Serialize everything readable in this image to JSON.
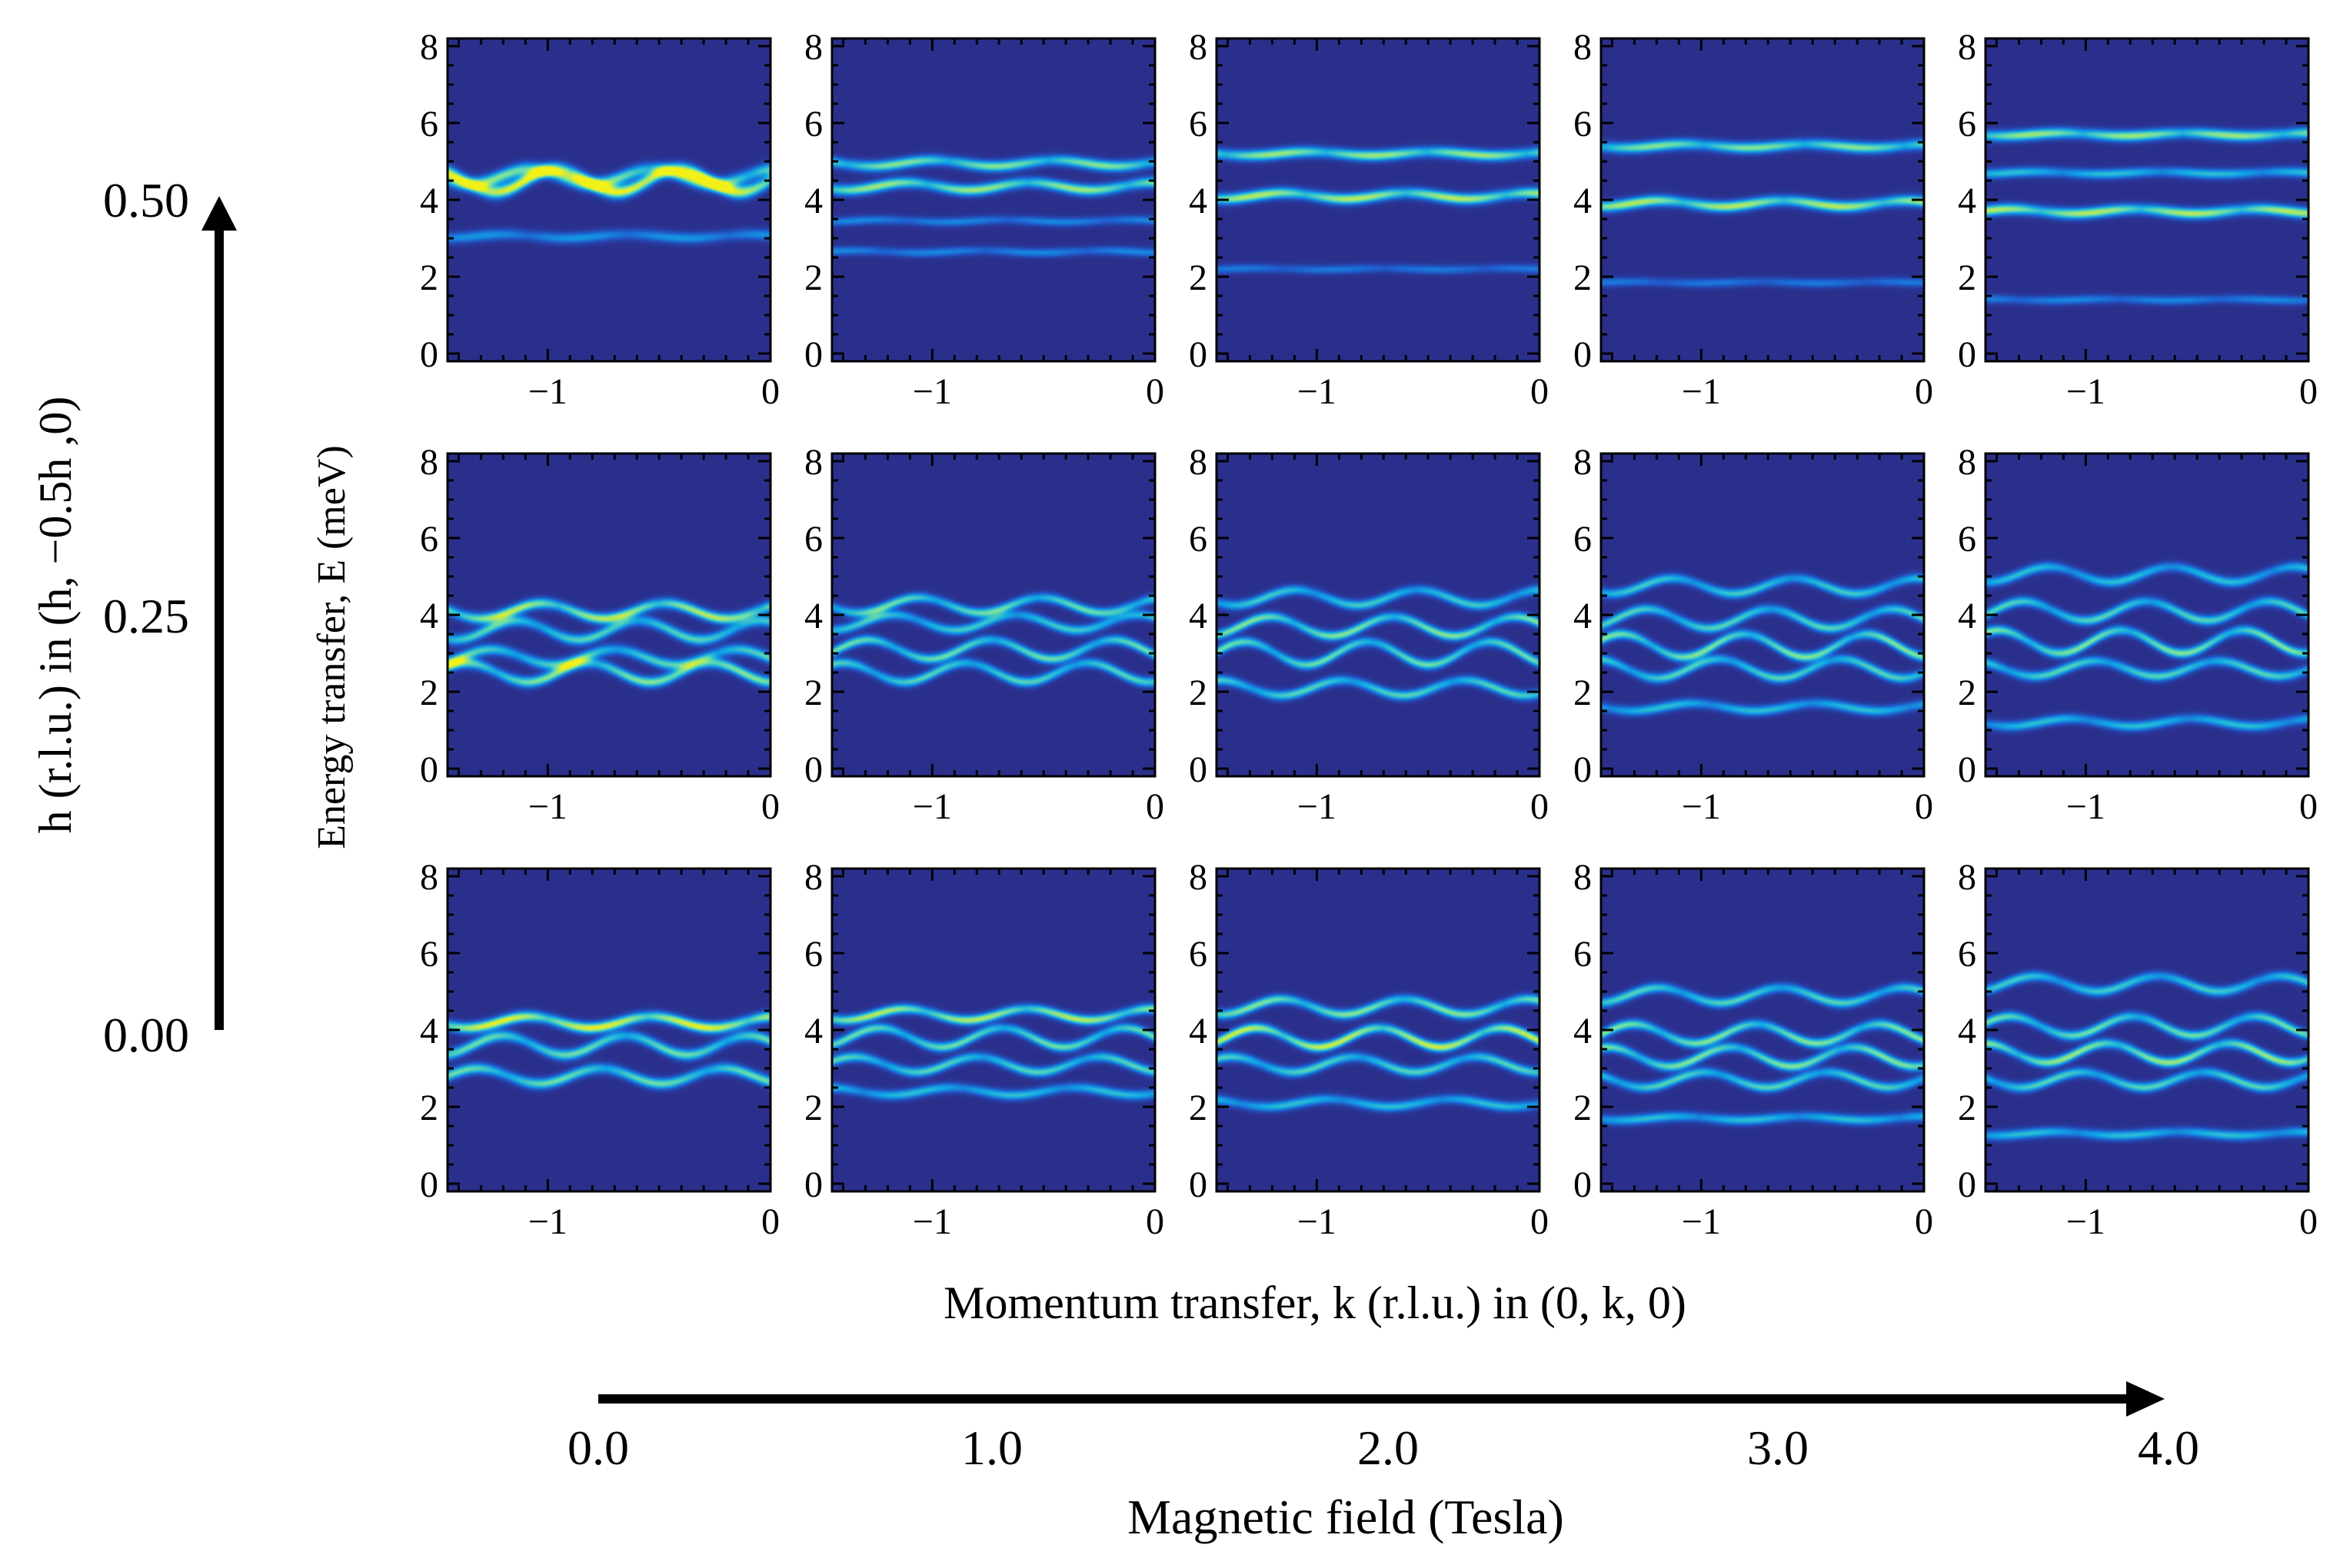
{
  "labels": {
    "y_axis_left": "h (r.l.u.) in (h, −0.5h ,0)",
    "y_axis_left_ticks": [
      "0.50",
      "0.25",
      "0.00"
    ],
    "y_axis_panels": "Energy transfer, E (meV)",
    "x_axis_panels": "Momentum transfer, k (r.l.u.) in (0, k, 0)",
    "x_axis_bottom": "Magnetic field (Tesla)",
    "x_axis_bottom_ticks": [
      "0.0",
      "1.0",
      "2.0",
      "3.0",
      "4.0"
    ]
  },
  "colors": {
    "background": "#2b2f8c",
    "colormap": [
      "#2b2f8c",
      "#1f5fd0",
      "#10a8e6",
      "#6fe0a8",
      "#f3f018"
    ],
    "axis": "#000000"
  },
  "chart_data": {
    "type": "heatmap",
    "description_grid": "3 rows (h = 0.50, 0.25, 0.00) x 5 columns (B = 0, 1, 2, 3, 4 T)",
    "xlim": [
      -1.45,
      0
    ],
    "ylim": [
      -0.2,
      8.2
    ],
    "xticks": [
      "−1",
      "0"
    ],
    "yticks": [
      "0",
      "2",
      "4",
      "6",
      "8"
    ],
    "rows": [
      {
        "h": "0.50",
        "panels": [
          {
            "field": "0.0",
            "branches": [
              {
                "E": 4.5,
                "amp": 0.3,
                "w": 0.12,
                "i": 1.0
              },
              {
                "E": 4.6,
                "amp": 0.2,
                "w": 0.12,
                "i": 0.8
              },
              {
                "E": 3.05,
                "amp": 0.05,
                "w": 0.1,
                "i": 0.45
              }
            ]
          },
          {
            "field": "1.0",
            "branches": [
              {
                "E": 4.95,
                "amp": 0.08,
                "w": 0.1,
                "i": 0.8
              },
              {
                "E": 4.35,
                "amp": 0.1,
                "w": 0.1,
                "i": 0.85
              },
              {
                "E": 3.45,
                "amp": 0.03,
                "w": 0.08,
                "i": 0.4
              },
              {
                "E": 2.65,
                "amp": 0.03,
                "w": 0.08,
                "i": 0.4
              }
            ]
          },
          {
            "field": "2.0",
            "branches": [
              {
                "E": 5.2,
                "amp": 0.05,
                "w": 0.1,
                "i": 0.85
              },
              {
                "E": 4.1,
                "amp": 0.08,
                "w": 0.1,
                "i": 0.9
              },
              {
                "E": 2.2,
                "amp": 0.02,
                "w": 0.08,
                "i": 0.35
              }
            ]
          },
          {
            "field": "3.0",
            "branches": [
              {
                "E": 5.4,
                "amp": 0.05,
                "w": 0.1,
                "i": 0.8
              },
              {
                "E": 3.9,
                "amp": 0.08,
                "w": 0.1,
                "i": 0.9
              },
              {
                "E": 1.85,
                "amp": 0.02,
                "w": 0.08,
                "i": 0.35
              }
            ]
          },
          {
            "field": "4.0",
            "branches": [
              {
                "E": 5.7,
                "amp": 0.04,
                "w": 0.1,
                "i": 0.85
              },
              {
                "E": 4.7,
                "amp": 0.03,
                "w": 0.09,
                "i": 0.6
              },
              {
                "E": 3.7,
                "amp": 0.06,
                "w": 0.1,
                "i": 0.9
              },
              {
                "E": 1.4,
                "amp": 0.02,
                "w": 0.08,
                "i": 0.4
              }
            ]
          }
        ]
      },
      {
        "h": "0.25",
        "panels": [
          {
            "field": "0.0",
            "branches": [
              {
                "E": 4.1,
                "amp": 0.2,
                "w": 0.1,
                "i": 0.9
              },
              {
                "E": 3.6,
                "amp": 0.25,
                "w": 0.1,
                "i": 0.7
              },
              {
                "E": 2.9,
                "amp": 0.2,
                "w": 0.1,
                "i": 0.7
              },
              {
                "E": 2.5,
                "amp": 0.25,
                "w": 0.1,
                "i": 0.8
              }
            ]
          },
          {
            "field": "1.0",
            "branches": [
              {
                "E": 4.25,
                "amp": 0.2,
                "w": 0.09,
                "i": 0.75
              },
              {
                "E": 3.8,
                "amp": 0.2,
                "w": 0.09,
                "i": 0.65
              },
              {
                "E": 3.1,
                "amp": 0.25,
                "w": 0.09,
                "i": 0.75
              },
              {
                "E": 2.5,
                "amp": 0.25,
                "w": 0.09,
                "i": 0.7
              }
            ]
          },
          {
            "field": "2.0",
            "branches": [
              {
                "E": 4.45,
                "amp": 0.2,
                "w": 0.09,
                "i": 0.65
              },
              {
                "E": 3.7,
                "amp": 0.25,
                "w": 0.09,
                "i": 0.8
              },
              {
                "E": 3.0,
                "amp": 0.3,
                "w": 0.09,
                "i": 0.75
              },
              {
                "E": 2.1,
                "amp": 0.2,
                "w": 0.09,
                "i": 0.7
              }
            ]
          },
          {
            "field": "3.0",
            "branches": [
              {
                "E": 4.75,
                "amp": 0.2,
                "w": 0.09,
                "i": 0.65
              },
              {
                "E": 3.9,
                "amp": 0.25,
                "w": 0.09,
                "i": 0.7
              },
              {
                "E": 3.2,
                "amp": 0.3,
                "w": 0.09,
                "i": 0.8
              },
              {
                "E": 2.6,
                "amp": 0.25,
                "w": 0.09,
                "i": 0.7
              },
              {
                "E": 1.6,
                "amp": 0.1,
                "w": 0.09,
                "i": 0.6
              }
            ]
          },
          {
            "field": "4.0",
            "branches": [
              {
                "E": 5.05,
                "amp": 0.2,
                "w": 0.09,
                "i": 0.6
              },
              {
                "E": 4.1,
                "amp": 0.25,
                "w": 0.09,
                "i": 0.7
              },
              {
                "E": 3.3,
                "amp": 0.3,
                "w": 0.09,
                "i": 0.8
              },
              {
                "E": 2.6,
                "amp": 0.2,
                "w": 0.09,
                "i": 0.7
              },
              {
                "E": 1.2,
                "amp": 0.1,
                "w": 0.09,
                "i": 0.6
              }
            ]
          }
        ]
      },
      {
        "h": "0.00",
        "panels": [
          {
            "field": "0.0",
            "branches": [
              {
                "E": 4.2,
                "amp": 0.15,
                "w": 0.1,
                "i": 1.0
              },
              {
                "E": 3.6,
                "amp": 0.25,
                "w": 0.1,
                "i": 0.75
              },
              {
                "E": 2.8,
                "amp": 0.2,
                "w": 0.1,
                "i": 0.75
              }
            ]
          },
          {
            "field": "1.0",
            "branches": [
              {
                "E": 4.4,
                "amp": 0.15,
                "w": 0.09,
                "i": 0.9
              },
              {
                "E": 3.8,
                "amp": 0.25,
                "w": 0.09,
                "i": 0.75
              },
              {
                "E": 3.1,
                "amp": 0.2,
                "w": 0.09,
                "i": 0.7
              },
              {
                "E": 2.4,
                "amp": 0.1,
                "w": 0.09,
                "i": 0.6
              }
            ]
          },
          {
            "field": "2.0",
            "branches": [
              {
                "E": 4.6,
                "amp": 0.2,
                "w": 0.09,
                "i": 0.8
              },
              {
                "E": 3.8,
                "amp": 0.25,
                "w": 0.09,
                "i": 0.95
              },
              {
                "E": 3.1,
                "amp": 0.2,
                "w": 0.09,
                "i": 0.7
              },
              {
                "E": 2.1,
                "amp": 0.1,
                "w": 0.09,
                "i": 0.6
              }
            ]
          },
          {
            "field": "3.0",
            "branches": [
              {
                "E": 4.9,
                "amp": 0.2,
                "w": 0.09,
                "i": 0.7
              },
              {
                "E": 3.9,
                "amp": 0.25,
                "w": 0.09,
                "i": 0.8
              },
              {
                "E": 3.3,
                "amp": 0.25,
                "w": 0.09,
                "i": 0.8
              },
              {
                "E": 2.7,
                "amp": 0.2,
                "w": 0.09,
                "i": 0.7
              },
              {
                "E": 1.7,
                "amp": 0.05,
                "w": 0.09,
                "i": 0.6
              }
            ]
          },
          {
            "field": "4.0",
            "branches": [
              {
                "E": 5.2,
                "amp": 0.2,
                "w": 0.09,
                "i": 0.65
              },
              {
                "E": 4.1,
                "amp": 0.25,
                "w": 0.09,
                "i": 0.75
              },
              {
                "E": 3.4,
                "amp": 0.25,
                "w": 0.09,
                "i": 0.85
              },
              {
                "E": 2.7,
                "amp": 0.2,
                "w": 0.09,
                "i": 0.7
              },
              {
                "E": 1.3,
                "amp": 0.05,
                "w": 0.09,
                "i": 0.6
              }
            ]
          }
        ]
      }
    ]
  }
}
